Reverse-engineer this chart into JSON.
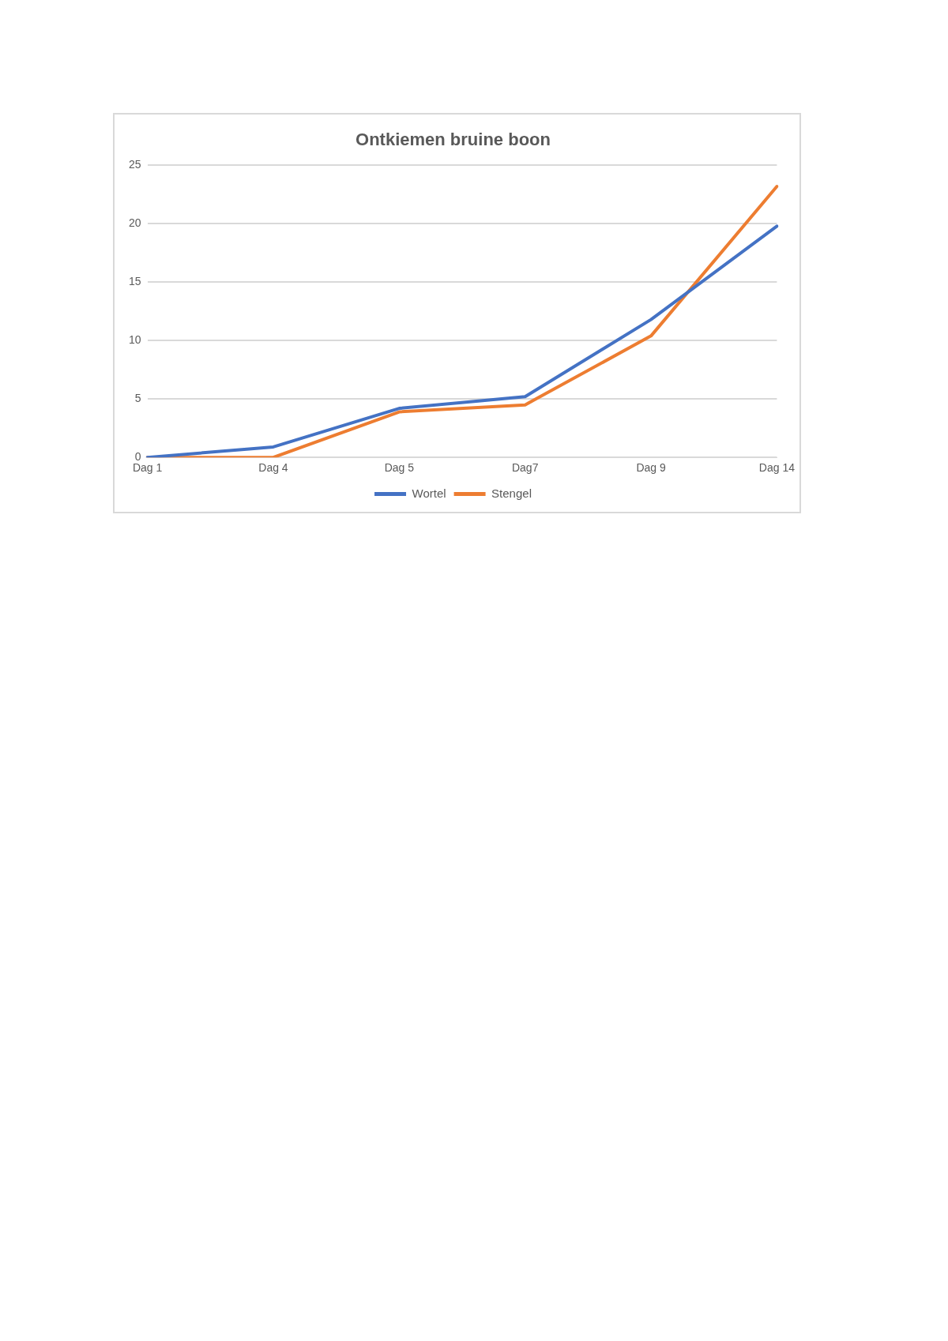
{
  "chart_data": {
    "type": "line",
    "title": "Ontkiemen bruine boon",
    "categories": [
      "Dag 1",
      "Dag 4",
      "Dag 5",
      "Dag7",
      "Dag 9",
      "Dag 14"
    ],
    "series": [
      {
        "name": "Wortel",
        "color": "#4472c4",
        "values": [
          0,
          0.9,
          4.2,
          5.2,
          11.8,
          19.8
        ]
      },
      {
        "name": "Stengel",
        "color": "#ed7d31",
        "values": [
          0,
          0,
          3.9,
          4.5,
          10.4,
          23.2
        ]
      }
    ],
    "ylim": [
      0,
      25
    ],
    "yticks": [
      0,
      5,
      10,
      15,
      20,
      25
    ],
    "grid": "y",
    "legend": "bottom",
    "marker": "none",
    "line_style": "solid"
  }
}
